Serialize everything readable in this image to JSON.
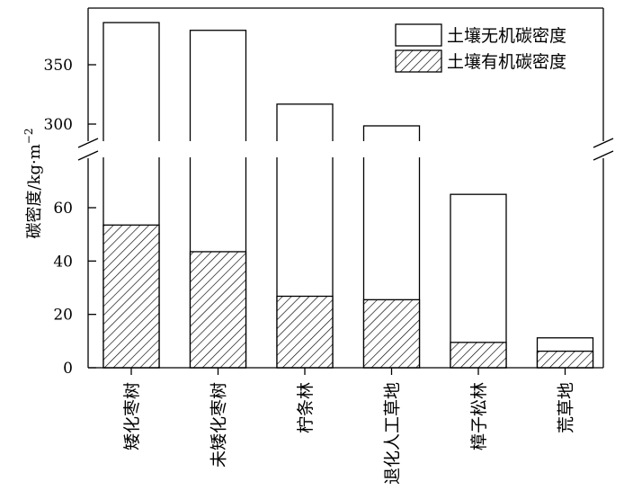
{
  "chart_data": {
    "type": "bar",
    "stacked": true,
    "broken_y_axis": true,
    "ylabel_main": "碳密度/kg·m",
    "ylabel_exponent": "−2",
    "categories": [
      "矮化枣树",
      "未矮化枣树",
      "柠条林",
      "退化人工草地",
      "樟子松林",
      "荒草地"
    ],
    "series": [
      {
        "name": "土壤有机碳密度",
        "values": [
          53.5,
          43.5,
          26.8,
          25.5,
          9.5,
          6.2
        ],
        "pattern": "hatched"
      },
      {
        "name": "土壤无机碳密度",
        "values": [
          332,
          335.5,
          290,
          273,
          55.5,
          5.0
        ],
        "pattern": "white"
      }
    ],
    "totals": [
      385.5,
      379,
      316.8,
      298.5,
      65,
      11.2
    ],
    "lower_segment": {
      "range": [
        0,
        80
      ],
      "ticks": [
        0,
        20,
        40,
        60
      ]
    },
    "upper_segment": {
      "range": [
        274,
        390
      ],
      "ticks": [
        300,
        350
      ]
    },
    "legend_position": "top-right",
    "grid": false
  }
}
